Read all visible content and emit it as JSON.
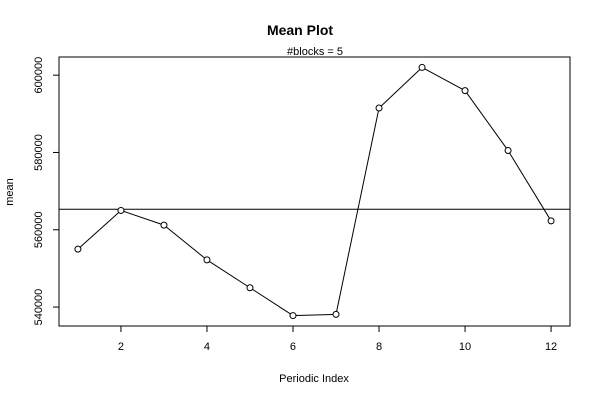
{
  "chart_data": {
    "type": "line",
    "title": "Mean Plot",
    "subtitle": "#blocks =  5",
    "xlabel": "Periodic Index",
    "ylabel": "mean",
    "x": [
      1,
      2,
      3,
      4,
      5,
      6,
      7,
      8,
      9,
      10,
      11,
      12
    ],
    "values": [
      555000,
      565000,
      561200,
      552200,
      545000,
      537800,
      538100,
      591500,
      602000,
      596000,
      580500,
      562300
    ],
    "reference_line": {
      "orientation": "horizontal",
      "y": 565300
    },
    "xlim": [
      0.56,
      12.44
    ],
    "ylim": [
      535100,
      604700
    ],
    "x_ticks": [
      2,
      4,
      6,
      8,
      10,
      12
    ],
    "x_tick_labels": [
      "2",
      "4",
      "6",
      "8",
      "10",
      "12"
    ],
    "y_ticks": [
      540000,
      560000,
      580000,
      600000
    ],
    "y_tick_labels": [
      "540000",
      "560000",
      "580000",
      "600000"
    ],
    "markers": "open-circle",
    "grid": false,
    "colors": {
      "line": "#000000",
      "marker_fill": "#ffffff",
      "background": "#ffffff"
    }
  }
}
